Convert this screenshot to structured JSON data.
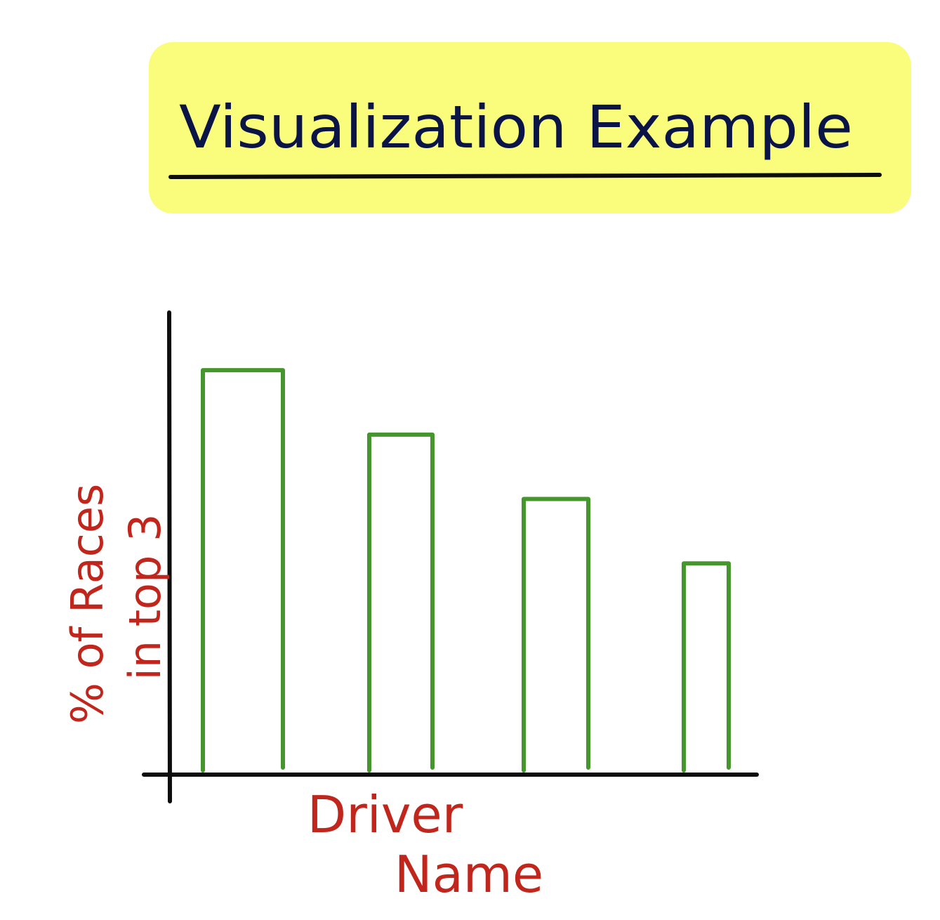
{
  "title": "Visualization Example",
  "colors": {
    "highlight": "#fafd7c",
    "title_text": "#0b1446",
    "underline": "#0d0d0d",
    "axis": "#0d0d0d",
    "bar_stroke": "#45962c",
    "label": "#c0261c"
  },
  "chart_data": {
    "type": "bar",
    "title": "Visualization Example",
    "xlabel": "Driver Name",
    "ylabel": "% of Races in top 3",
    "categories": [
      "",
      "",
      "",
      ""
    ],
    "values": [
      87,
      73,
      59,
      45
    ],
    "ylim": [
      0,
      100
    ],
    "grid": false,
    "legend": "none",
    "bar_style": "outline"
  }
}
